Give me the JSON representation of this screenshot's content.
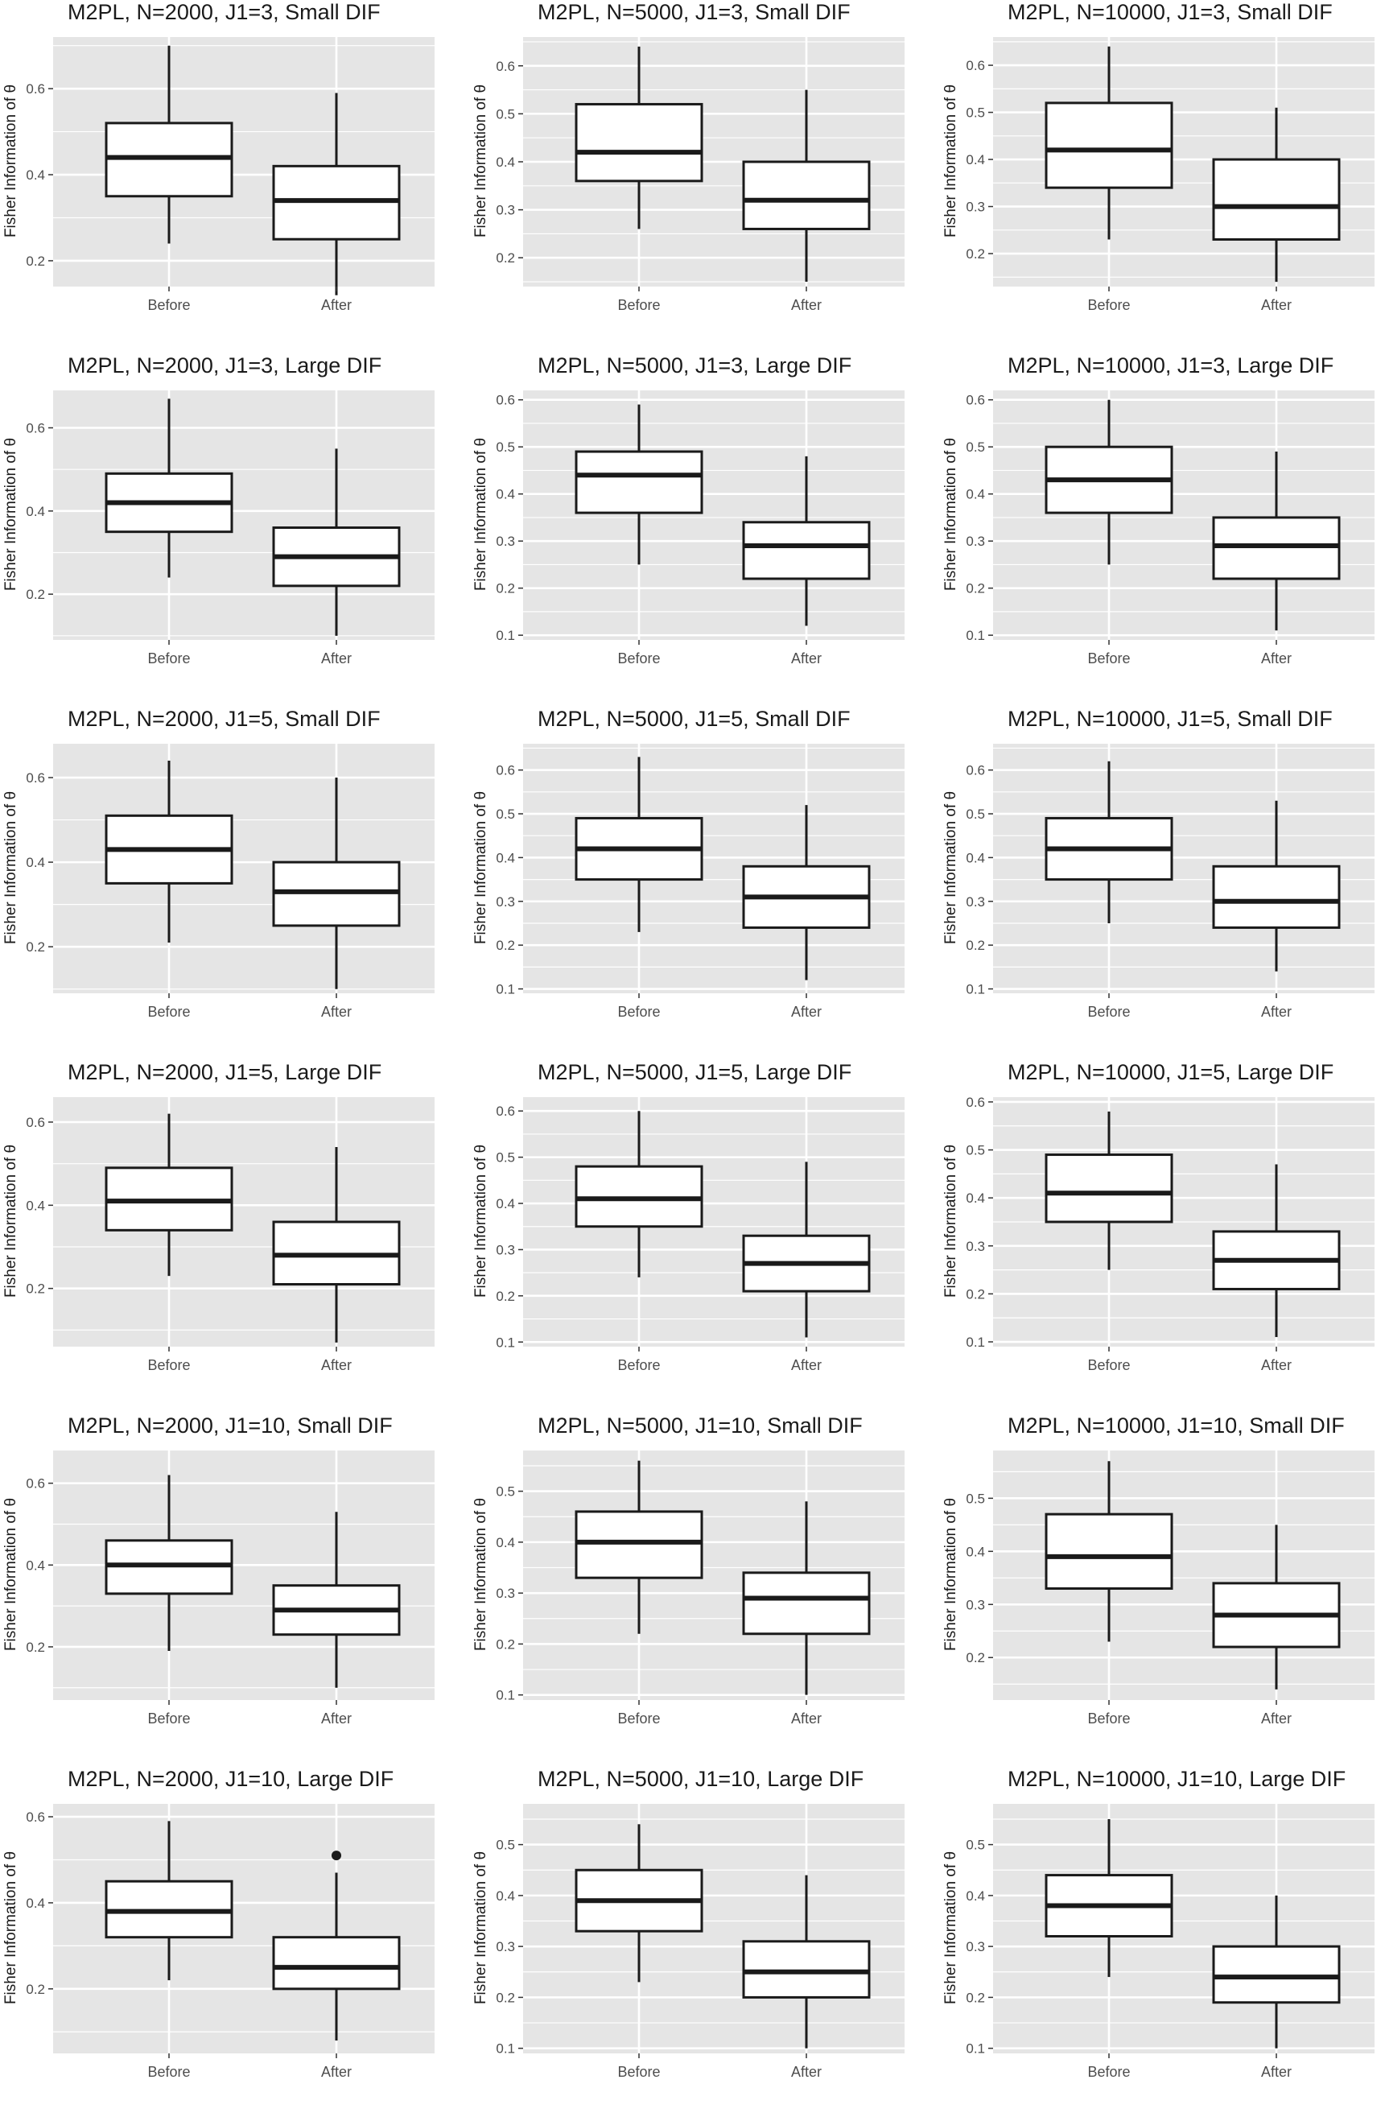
{
  "figure": {
    "y_axis_label": "Fisher Information of θ",
    "x_categories": [
      "Before",
      "After"
    ],
    "colors": {
      "panel_background": "#e5e5e5",
      "gridline": "#ffffff",
      "box_fill": "#ffffff",
      "box_line": "#1a1a1a",
      "tick_text": "#4d4d4d"
    }
  },
  "chart_data": [
    {
      "type": "box",
      "title": "M2PL, N=2000, J1=3, Small DIF",
      "ylim": [
        0.14,
        0.72
      ],
      "yticks": [
        0.2,
        0.4,
        0.6
      ],
      "boxes": [
        {
          "category": "Before",
          "whisker_low": 0.24,
          "q1": 0.35,
          "median": 0.44,
          "q3": 0.52,
          "whisker_high": 0.7,
          "outliers": []
        },
        {
          "category": "After",
          "whisker_low": 0.12,
          "q1": 0.25,
          "median": 0.34,
          "q3": 0.42,
          "whisker_high": 0.59,
          "outliers": []
        }
      ]
    },
    {
      "type": "box",
      "title": "M2PL, N=5000, J1=3, Small DIF",
      "ylim": [
        0.14,
        0.66
      ],
      "yticks": [
        0.2,
        0.3,
        0.4,
        0.5,
        0.6
      ],
      "boxes": [
        {
          "category": "Before",
          "whisker_low": 0.26,
          "q1": 0.36,
          "median": 0.42,
          "q3": 0.52,
          "whisker_high": 0.64,
          "outliers": []
        },
        {
          "category": "After",
          "whisker_low": 0.15,
          "q1": 0.26,
          "median": 0.32,
          "q3": 0.4,
          "whisker_high": 0.55,
          "outliers": []
        }
      ]
    },
    {
      "type": "box",
      "title": "M2PL, N=10000, J1=3, Small DIF",
      "ylim": [
        0.13,
        0.66
      ],
      "yticks": [
        0.2,
        0.3,
        0.4,
        0.5,
        0.6
      ],
      "boxes": [
        {
          "category": "Before",
          "whisker_low": 0.23,
          "q1": 0.34,
          "median": 0.42,
          "q3": 0.52,
          "whisker_high": 0.64,
          "outliers": []
        },
        {
          "category": "After",
          "whisker_low": 0.14,
          "q1": 0.23,
          "median": 0.3,
          "q3": 0.4,
          "whisker_high": 0.51,
          "outliers": []
        }
      ]
    },
    {
      "type": "box",
      "title": "M2PL, N=2000, J1=3, Large DIF",
      "ylim": [
        0.09,
        0.69
      ],
      "yticks": [
        0.2,
        0.4,
        0.6
      ],
      "boxes": [
        {
          "category": "Before",
          "whisker_low": 0.24,
          "q1": 0.35,
          "median": 0.42,
          "q3": 0.49,
          "whisker_high": 0.67,
          "outliers": []
        },
        {
          "category": "After",
          "whisker_low": 0.1,
          "q1": 0.22,
          "median": 0.29,
          "q3": 0.36,
          "whisker_high": 0.55,
          "outliers": []
        }
      ]
    },
    {
      "type": "box",
      "title": "M2PL, N=5000, J1=3, Large DIF",
      "ylim": [
        0.09,
        0.62
      ],
      "yticks": [
        0.1,
        0.2,
        0.3,
        0.4,
        0.5,
        0.6
      ],
      "boxes": [
        {
          "category": "Before",
          "whisker_low": 0.25,
          "q1": 0.36,
          "median": 0.44,
          "q3": 0.49,
          "whisker_high": 0.59,
          "outliers": []
        },
        {
          "category": "After",
          "whisker_low": 0.12,
          "q1": 0.22,
          "median": 0.29,
          "q3": 0.34,
          "whisker_high": 0.48,
          "outliers": []
        }
      ]
    },
    {
      "type": "box",
      "title": "M2PL, N=10000, J1=3, Large DIF",
      "ylim": [
        0.09,
        0.62
      ],
      "yticks": [
        0.1,
        0.2,
        0.3,
        0.4,
        0.5,
        0.6
      ],
      "boxes": [
        {
          "category": "Before",
          "whisker_low": 0.25,
          "q1": 0.36,
          "median": 0.43,
          "q3": 0.5,
          "whisker_high": 0.6,
          "outliers": []
        },
        {
          "category": "After",
          "whisker_low": 0.11,
          "q1": 0.22,
          "median": 0.29,
          "q3": 0.35,
          "whisker_high": 0.49,
          "outliers": []
        }
      ]
    },
    {
      "type": "box",
      "title": "M2PL, N=2000, J1=5, Small DIF",
      "ylim": [
        0.09,
        0.68
      ],
      "yticks": [
        0.2,
        0.4,
        0.6
      ],
      "boxes": [
        {
          "category": "Before",
          "whisker_low": 0.21,
          "q1": 0.35,
          "median": 0.43,
          "q3": 0.51,
          "whisker_high": 0.64,
          "outliers": []
        },
        {
          "category": "After",
          "whisker_low": 0.1,
          "q1": 0.25,
          "median": 0.33,
          "q3": 0.4,
          "whisker_high": 0.6,
          "outliers": []
        }
      ]
    },
    {
      "type": "box",
      "title": "M2PL, N=5000, J1=5, Small DIF",
      "ylim": [
        0.09,
        0.66
      ],
      "yticks": [
        0.1,
        0.2,
        0.3,
        0.4,
        0.5,
        0.6
      ],
      "boxes": [
        {
          "category": "Before",
          "whisker_low": 0.23,
          "q1": 0.35,
          "median": 0.42,
          "q3": 0.49,
          "whisker_high": 0.63,
          "outliers": []
        },
        {
          "category": "After",
          "whisker_low": 0.12,
          "q1": 0.24,
          "median": 0.31,
          "q3": 0.38,
          "whisker_high": 0.52,
          "outliers": []
        }
      ]
    },
    {
      "type": "box",
      "title": "M2PL, N=10000, J1=5, Small DIF",
      "ylim": [
        0.09,
        0.66
      ],
      "yticks": [
        0.1,
        0.2,
        0.3,
        0.4,
        0.5,
        0.6
      ],
      "boxes": [
        {
          "category": "Before",
          "whisker_low": 0.25,
          "q1": 0.35,
          "median": 0.42,
          "q3": 0.49,
          "whisker_high": 0.62,
          "outliers": []
        },
        {
          "category": "After",
          "whisker_low": 0.14,
          "q1": 0.24,
          "median": 0.3,
          "q3": 0.38,
          "whisker_high": 0.53,
          "outliers": []
        }
      ]
    },
    {
      "type": "box",
      "title": "M2PL, N=2000, J1=5, Large DIF",
      "ylim": [
        0.06,
        0.66
      ],
      "yticks": [
        0.2,
        0.4,
        0.6
      ],
      "boxes": [
        {
          "category": "Before",
          "whisker_low": 0.23,
          "q1": 0.34,
          "median": 0.41,
          "q3": 0.49,
          "whisker_high": 0.62,
          "outliers": []
        },
        {
          "category": "After",
          "whisker_low": 0.07,
          "q1": 0.21,
          "median": 0.28,
          "q3": 0.36,
          "whisker_high": 0.54,
          "outliers": []
        }
      ]
    },
    {
      "type": "box",
      "title": "M2PL, N=5000, J1=5, Large DIF",
      "ylim": [
        0.09,
        0.63
      ],
      "yticks": [
        0.1,
        0.2,
        0.3,
        0.4,
        0.5,
        0.6
      ],
      "boxes": [
        {
          "category": "Before",
          "whisker_low": 0.24,
          "q1": 0.35,
          "median": 0.41,
          "q3": 0.48,
          "whisker_high": 0.6,
          "outliers": []
        },
        {
          "category": "After",
          "whisker_low": 0.11,
          "q1": 0.21,
          "median": 0.27,
          "q3": 0.33,
          "whisker_high": 0.49,
          "outliers": []
        }
      ]
    },
    {
      "type": "box",
      "title": "M2PL, N=10000, J1=5, Large DIF",
      "ylim": [
        0.09,
        0.61
      ],
      "yticks": [
        0.1,
        0.2,
        0.3,
        0.4,
        0.5,
        0.6
      ],
      "boxes": [
        {
          "category": "Before",
          "whisker_low": 0.25,
          "q1": 0.35,
          "median": 0.41,
          "q3": 0.49,
          "whisker_high": 0.58,
          "outliers": []
        },
        {
          "category": "After",
          "whisker_low": 0.11,
          "q1": 0.21,
          "median": 0.27,
          "q3": 0.33,
          "whisker_high": 0.47,
          "outliers": []
        }
      ]
    },
    {
      "type": "box",
      "title": "M2PL, N=2000, J1=10, Small DIF",
      "ylim": [
        0.07,
        0.68
      ],
      "yticks": [
        0.2,
        0.4,
        0.6
      ],
      "boxes": [
        {
          "category": "Before",
          "whisker_low": 0.19,
          "q1": 0.33,
          "median": 0.4,
          "q3": 0.46,
          "whisker_high": 0.62,
          "outliers": []
        },
        {
          "category": "After",
          "whisker_low": 0.1,
          "q1": 0.23,
          "median": 0.29,
          "q3": 0.35,
          "whisker_high": 0.53,
          "outliers": []
        }
      ]
    },
    {
      "type": "box",
      "title": "M2PL, N=5000, J1=10, Small DIF",
      "ylim": [
        0.09,
        0.58
      ],
      "yticks": [
        0.1,
        0.2,
        0.3,
        0.4,
        0.5
      ],
      "boxes": [
        {
          "category": "Before",
          "whisker_low": 0.22,
          "q1": 0.33,
          "median": 0.4,
          "q3": 0.46,
          "whisker_high": 0.56,
          "outliers": []
        },
        {
          "category": "After",
          "whisker_low": 0.1,
          "q1": 0.22,
          "median": 0.29,
          "q3": 0.34,
          "whisker_high": 0.48,
          "outliers": []
        }
      ]
    },
    {
      "type": "box",
      "title": "M2PL, N=10000, J1=10, Small DIF",
      "ylim": [
        0.12,
        0.59
      ],
      "yticks": [
        0.2,
        0.3,
        0.4,
        0.5
      ],
      "boxes": [
        {
          "category": "Before",
          "whisker_low": 0.23,
          "q1": 0.33,
          "median": 0.39,
          "q3": 0.47,
          "whisker_high": 0.57,
          "outliers": []
        },
        {
          "category": "After",
          "whisker_low": 0.14,
          "q1": 0.22,
          "median": 0.28,
          "q3": 0.34,
          "whisker_high": 0.45,
          "outliers": []
        }
      ]
    },
    {
      "type": "box",
      "title": "M2PL, N=2000, J1=10, Large DIF",
      "ylim": [
        0.05,
        0.63
      ],
      "yticks": [
        0.2,
        0.4,
        0.6
      ],
      "boxes": [
        {
          "category": "Before",
          "whisker_low": 0.22,
          "q1": 0.32,
          "median": 0.38,
          "q3": 0.45,
          "whisker_high": 0.59,
          "outliers": []
        },
        {
          "category": "After",
          "whisker_low": 0.08,
          "q1": 0.2,
          "median": 0.25,
          "q3": 0.32,
          "whisker_high": 0.47,
          "outliers": [
            0.51
          ]
        }
      ]
    },
    {
      "type": "box",
      "title": "M2PL, N=5000, J1=10, Large DIF",
      "ylim": [
        0.09,
        0.58
      ],
      "yticks": [
        0.1,
        0.2,
        0.3,
        0.4,
        0.5
      ],
      "boxes": [
        {
          "category": "Before",
          "whisker_low": 0.23,
          "q1": 0.33,
          "median": 0.39,
          "q3": 0.45,
          "whisker_high": 0.54,
          "outliers": []
        },
        {
          "category": "After",
          "whisker_low": 0.1,
          "q1": 0.2,
          "median": 0.25,
          "q3": 0.31,
          "whisker_high": 0.44,
          "outliers": []
        }
      ]
    },
    {
      "type": "box",
      "title": "M2PL, N=10000, J1=10, Large DIF",
      "ylim": [
        0.09,
        0.58
      ],
      "yticks": [
        0.1,
        0.2,
        0.3,
        0.4,
        0.5
      ],
      "boxes": [
        {
          "category": "Before",
          "whisker_low": 0.24,
          "q1": 0.32,
          "median": 0.38,
          "q3": 0.44,
          "whisker_high": 0.55,
          "outliers": []
        },
        {
          "category": "After",
          "whisker_low": 0.1,
          "q1": 0.19,
          "median": 0.24,
          "q3": 0.3,
          "whisker_high": 0.4,
          "outliers": []
        }
      ]
    }
  ]
}
